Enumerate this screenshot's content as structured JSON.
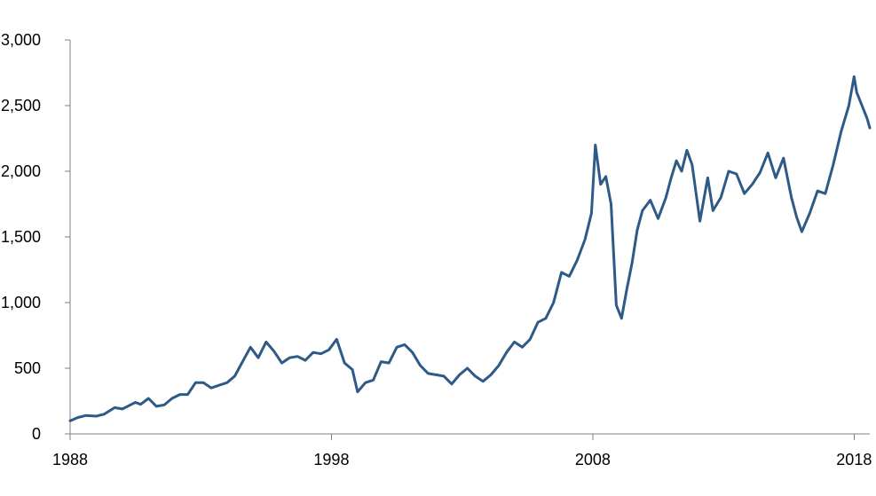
{
  "chart_data": {
    "type": "line",
    "title": "",
    "xlabel": "",
    "ylabel": "",
    "grid": false,
    "legend": "none",
    "xlim": [
      1988,
      2018.6
    ],
    "ylim": [
      0,
      3000
    ],
    "x_ticks": [
      {
        "value": 1988,
        "label": "1988"
      },
      {
        "value": 1998,
        "label": "1998"
      },
      {
        "value": 2008,
        "label": "2008"
      },
      {
        "value": 2018,
        "label": "2018"
      }
    ],
    "y_ticks": [
      {
        "value": 0,
        "label": "0"
      },
      {
        "value": 500,
        "label": "500"
      },
      {
        "value": 1000,
        "label": "1,000"
      },
      {
        "value": 1500,
        "label": "1,500"
      },
      {
        "value": 2000,
        "label": "2,000"
      },
      {
        "value": 2500,
        "label": "2,500"
      },
      {
        "value": 3000,
        "label": "3,000"
      }
    ],
    "series": [
      {
        "color": "#2e5a87",
        "x": [
          1988.0,
          1988.3,
          1988.6,
          1989.0,
          1989.3,
          1989.7,
          1990.0,
          1990.3,
          1990.5,
          1990.7,
          1991.0,
          1991.3,
          1991.6,
          1991.9,
          1992.2,
          1992.5,
          1992.8,
          1993.1,
          1993.4,
          1993.7,
          1994.0,
          1994.3,
          1994.6,
          1994.9,
          1995.2,
          1995.5,
          1995.8,
          1996.1,
          1996.4,
          1996.7,
          1997.0,
          1997.3,
          1997.6,
          1997.9,
          1998.2,
          1998.5,
          1998.8,
          1999.0,
          1999.3,
          1999.6,
          1999.9,
          2000.2,
          2000.5,
          2000.8,
          2001.1,
          2001.4,
          2001.7,
          2002.0,
          2002.3,
          2002.6,
          2002.9,
          2003.2,
          2003.5,
          2003.8,
          2004.1,
          2004.4,
          2004.7,
          2005.0,
          2005.3,
          2005.6,
          2005.9,
          2006.2,
          2006.5,
          2006.8,
          2007.1,
          2007.4,
          2007.7,
          2007.95,
          2008.1,
          2008.3,
          2008.5,
          2008.7,
          2008.9,
          2009.1,
          2009.3,
          2009.5,
          2009.7,
          2009.9,
          2010.2,
          2010.5,
          2010.8,
          2011.0,
          2011.2,
          2011.4,
          2011.6,
          2011.8,
          2012.1,
          2012.4,
          2012.6,
          2012.9,
          2013.2,
          2013.5,
          2013.8,
          2014.1,
          2014.4,
          2014.7,
          2015.0,
          2015.3,
          2015.6,
          2015.8,
          2016.0,
          2016.3,
          2016.6,
          2016.9,
          2017.2,
          2017.5,
          2017.8,
          2018.0,
          2018.1,
          2018.3,
          2018.5,
          2018.6
        ],
        "values": [
          100,
          125,
          140,
          135,
          150,
          200,
          190,
          220,
          240,
          225,
          270,
          210,
          220,
          270,
          300,
          300,
          390,
          390,
          350,
          370,
          390,
          440,
          550,
          660,
          580,
          700,
          630,
          540,
          580,
          590,
          560,
          620,
          610,
          640,
          720,
          540,
          490,
          320,
          390,
          410,
          550,
          540,
          660,
          680,
          620,
          520,
          460,
          450,
          440,
          380,
          450,
          500,
          440,
          400,
          450,
          520,
          620,
          700,
          660,
          720,
          850,
          880,
          1000,
          1230,
          1200,
          1320,
          1480,
          1680,
          2200,
          1900,
          1960,
          1750,
          980,
          880,
          1100,
          1300,
          1550,
          1700,
          1780,
          1640,
          1800,
          1950,
          2080,
          2000,
          2160,
          2050,
          1620,
          1950,
          1700,
          1800,
          2000,
          1980,
          1830,
          1900,
          1990,
          2140,
          1950,
          2100,
          1800,
          1650,
          1540,
          1680,
          1850,
          1830,
          2050,
          2300,
          2500,
          2720,
          2600,
          2500,
          2400,
          2330
        ]
      }
    ]
  }
}
